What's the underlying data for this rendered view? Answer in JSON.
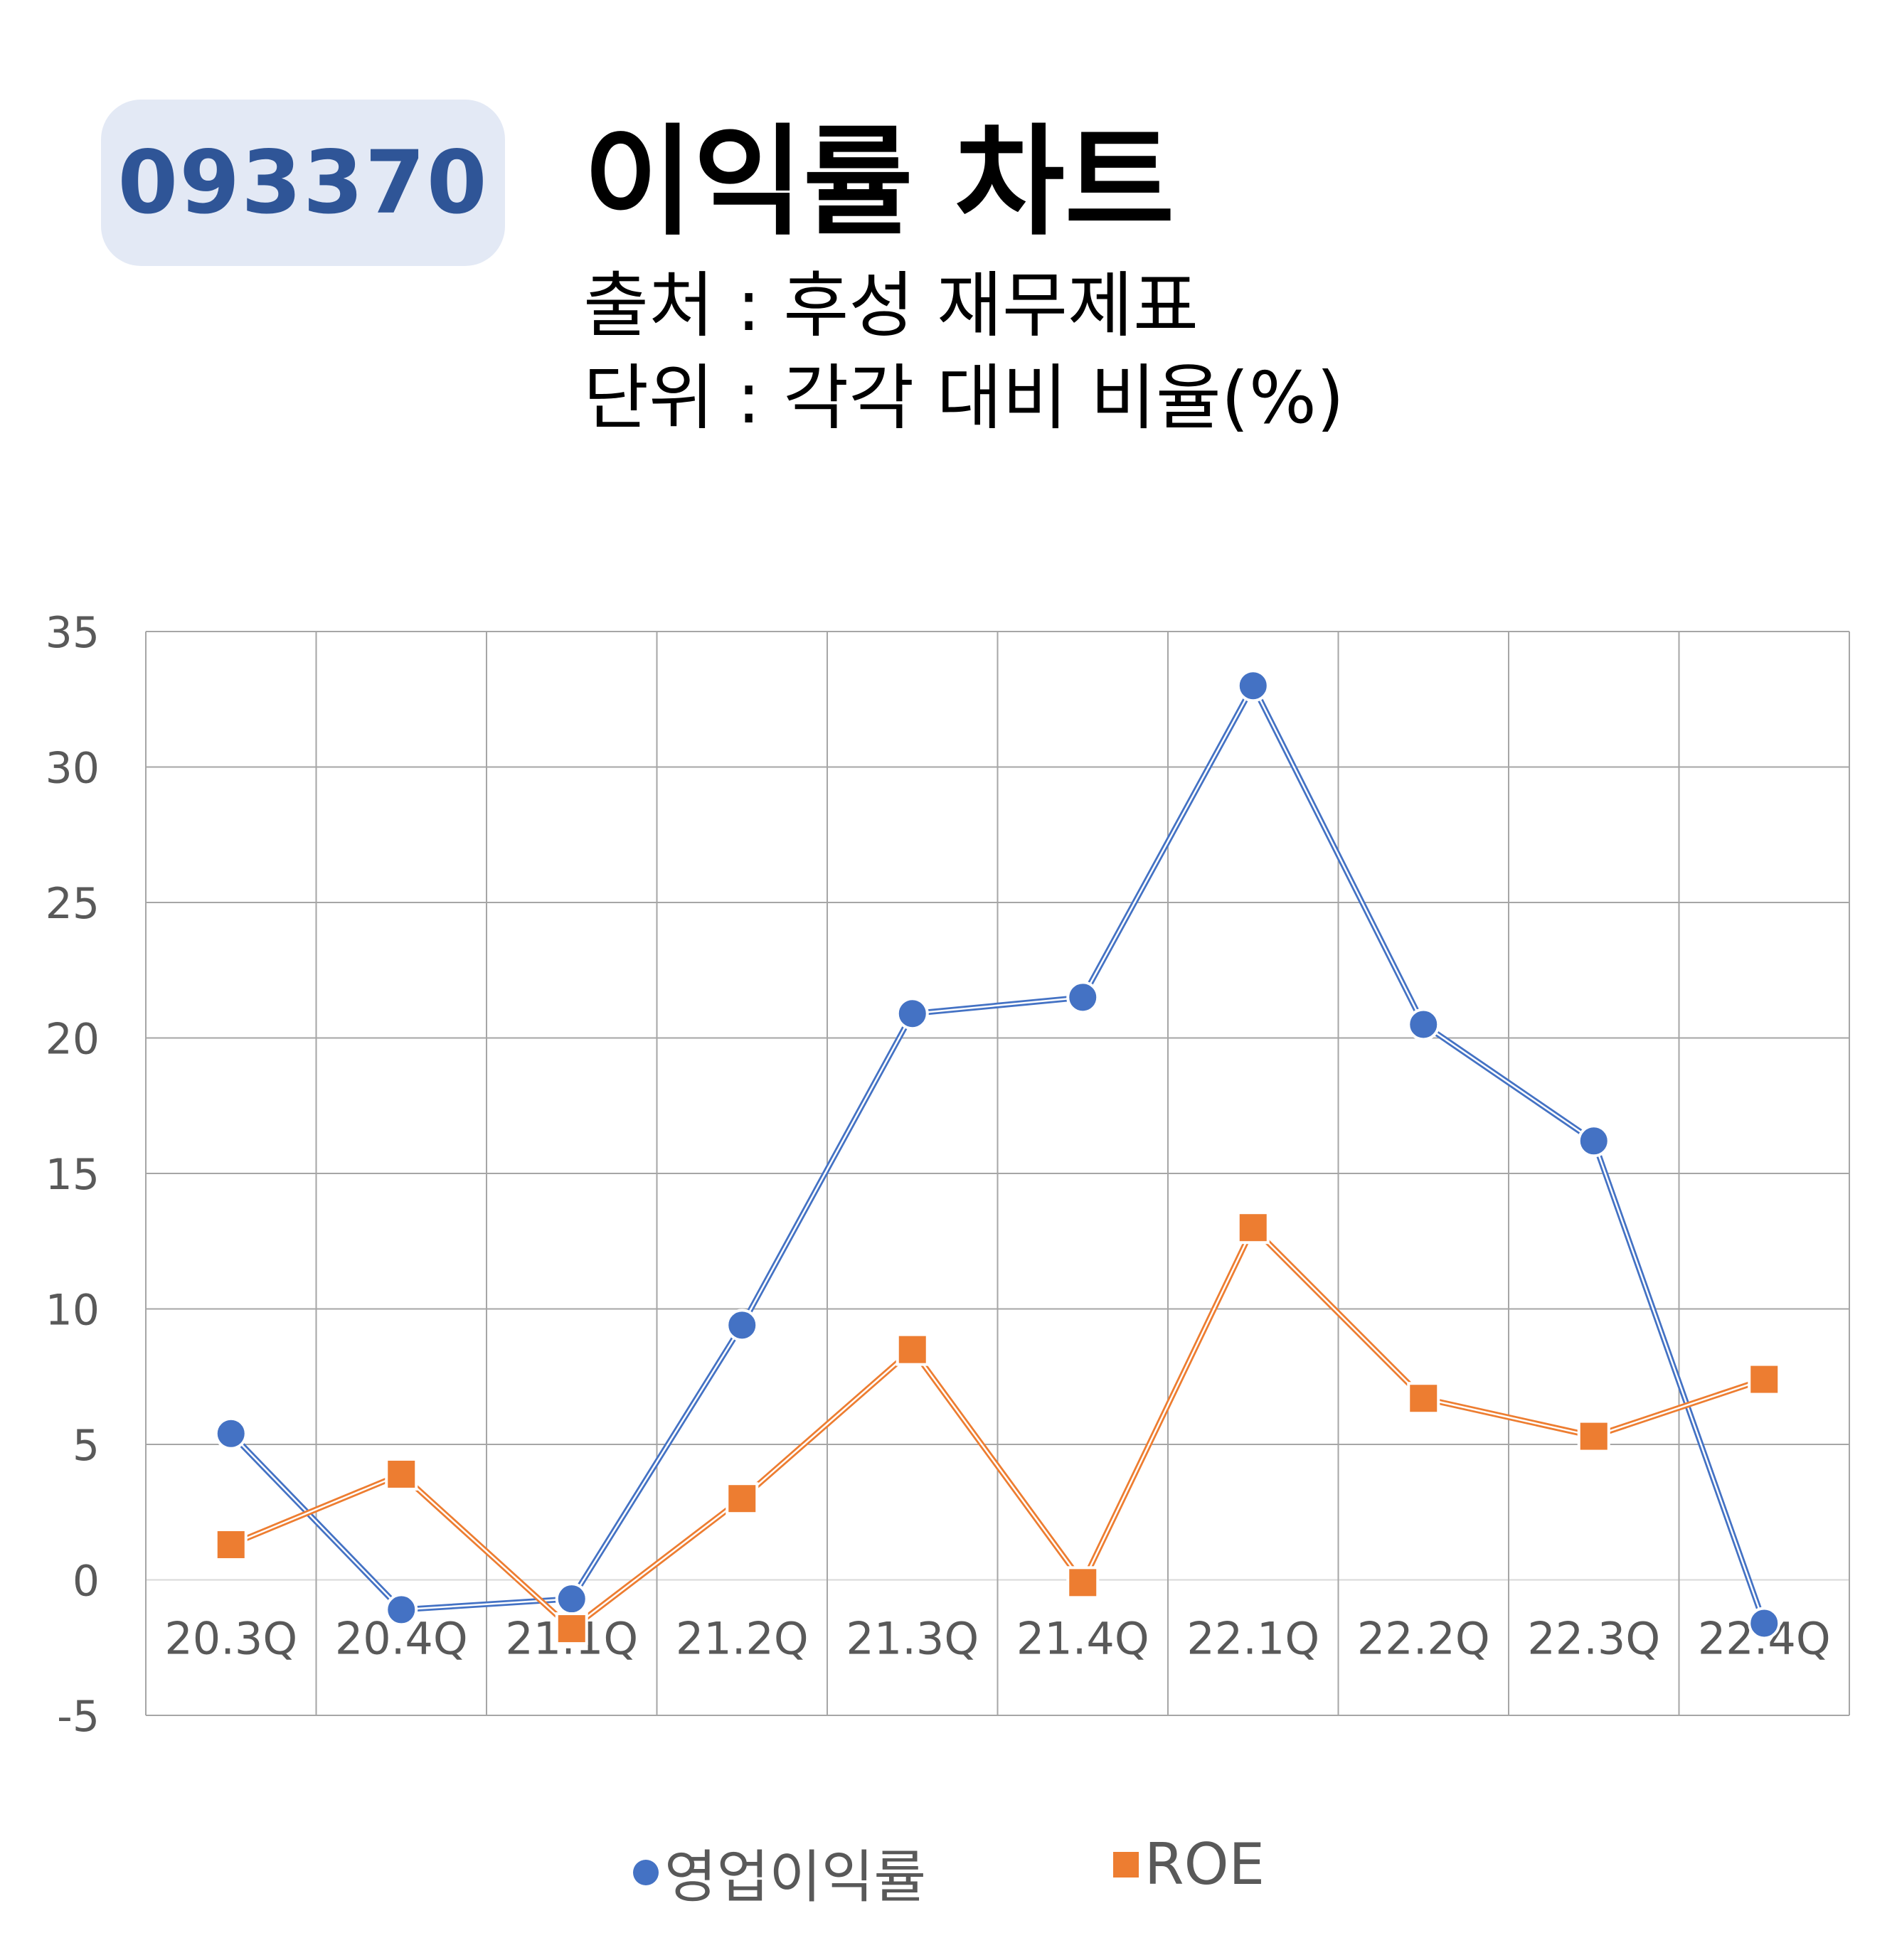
{
  "header": {
    "code": "093370",
    "title": "이익률 차트",
    "source": "출처 : 후성 재무제표",
    "unit": "단위 : 각각 대비 비율(%)"
  },
  "colors": {
    "badge_bg": "#e3e9f5",
    "badge_text": "#2f5597",
    "series_operating": "#4472c4",
    "series_roe": "#ed7d31",
    "grid": "#a6a6a6",
    "axis_text": "#595959"
  },
  "chart_data": {
    "type": "line",
    "categories": [
      "20.3Q",
      "20.4Q",
      "21.1Q",
      "21.2Q",
      "21.3Q",
      "21.4Q",
      "22.1Q",
      "22.2Q",
      "22.3Q",
      "22.4Q"
    ],
    "series": [
      {
        "name": "영업이익률",
        "marker": "circle",
        "values": [
          5.4,
          -1.1,
          -0.7,
          9.4,
          20.9,
          21.5,
          33.0,
          20.5,
          16.2,
          -1.6
        ]
      },
      {
        "name": "ROE",
        "marker": "square",
        "values": [
          1.3,
          3.9,
          -1.8,
          3.0,
          8.5,
          -0.1,
          13.0,
          6.7,
          5.3,
          7.4
        ]
      }
    ],
    "ylim": [
      -5,
      35
    ],
    "yticks": [
      -5,
      0,
      5,
      10,
      15,
      20,
      25,
      30,
      35
    ],
    "grid": true,
    "legend": "bottom"
  }
}
